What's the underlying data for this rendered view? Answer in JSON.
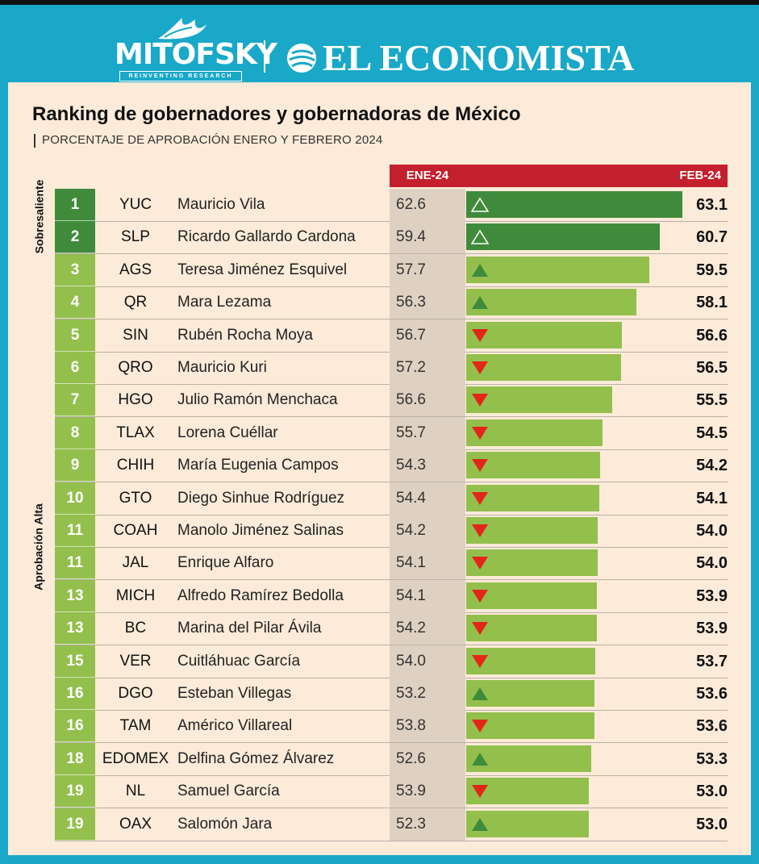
{
  "logos": {
    "mitofsky": "MITOFSKY",
    "mitofsky_tagline": "REINVENTING RESEARCH",
    "el_economista": "EL ECONOMISTA"
  },
  "title": "Ranking de gobernadores y gobernadoras de México",
  "subtitle": "PORCENTAJE DE APROBACIÓN ENERO Y FEBRERO 2024",
  "colors": {
    "sobresaliente": "#3f8b3b",
    "aprobacion_alta": "#93bf4c",
    "header": "#c41f2d",
    "up": "#3f8b3b",
    "down": "#e32618"
  },
  "chart_data": {
    "type": "bar",
    "title": "Ranking de gobernadores y gobernadoras de México",
    "subtitle": "PORCENTAJE DE APROBACIÓN ENERO Y FEBRERO 2024",
    "columns": {
      "ene": "ENE-24",
      "feb": "FEB-24"
    },
    "groups": [
      {
        "label": "Sobresaliente",
        "ranks": [
          "1",
          "2"
        ]
      },
      {
        "label": "Aprobación Alta",
        "ranks": [
          "3",
          "19"
        ]
      }
    ],
    "rows": [
      {
        "rank": "1",
        "state": "YUC",
        "name": "Mauricio Vila",
        "ene": "62.6",
        "feb": "63.1",
        "trend": "up",
        "group": "sobresaliente"
      },
      {
        "rank": "2",
        "state": "SLP",
        "name": "Ricardo Gallardo Cardona",
        "ene": "59.4",
        "feb": "60.7",
        "trend": "up",
        "group": "sobresaliente"
      },
      {
        "rank": "3",
        "state": "AGS",
        "name": "Teresa Jiménez Esquivel",
        "ene": "57.7",
        "feb": "59.5",
        "trend": "up",
        "group": "alta"
      },
      {
        "rank": "4",
        "state": "QR",
        "name": "Mara Lezama",
        "ene": "56.3",
        "feb": "58.1",
        "trend": "up",
        "group": "alta"
      },
      {
        "rank": "5",
        "state": "SIN",
        "name": "Rubén Rocha Moya",
        "ene": "56.7",
        "feb": "56.6",
        "trend": "down",
        "group": "alta"
      },
      {
        "rank": "6",
        "state": "QRO",
        "name": "Mauricio Kuri",
        "ene": "57.2",
        "feb": "56.5",
        "trend": "down",
        "group": "alta"
      },
      {
        "rank": "7",
        "state": "HGO",
        "name": "Julio Ramón Menchaca",
        "ene": "56.6",
        "feb": "55.5",
        "trend": "down",
        "group": "alta"
      },
      {
        "rank": "8",
        "state": "TLAX",
        "name": "Lorena Cuéllar",
        "ene": "55.7",
        "feb": "54.5",
        "trend": "down",
        "group": "alta"
      },
      {
        "rank": "9",
        "state": "CHIH",
        "name": "María Eugenia Campos",
        "ene": "54.3",
        "feb": "54.2",
        "trend": "down",
        "group": "alta"
      },
      {
        "rank": "10",
        "state": "GTO",
        "name": "Diego Sinhue Rodríguez",
        "ene": "54.4",
        "feb": "54.1",
        "trend": "down",
        "group": "alta"
      },
      {
        "rank": "11",
        "state": "COAH",
        "name": "Manolo Jiménez Salinas",
        "ene": "54.2",
        "feb": "54.0",
        "trend": "down",
        "group": "alta"
      },
      {
        "rank": "11",
        "state": "JAL",
        "name": "Enrique Alfaro",
        "ene": "54.1",
        "feb": "54.0",
        "trend": "down",
        "group": "alta"
      },
      {
        "rank": "13",
        "state": "MICH",
        "name": "Alfredo Ramírez Bedolla",
        "ene": "54.1",
        "feb": "53.9",
        "trend": "down",
        "group": "alta"
      },
      {
        "rank": "13",
        "state": "BC",
        "name": "Marina del Pilar Ávila",
        "ene": "54.2",
        "feb": "53.9",
        "trend": "down",
        "group": "alta"
      },
      {
        "rank": "15",
        "state": "VER",
        "name": "Cuitláhuac García",
        "ene": "54.0",
        "feb": "53.7",
        "trend": "down",
        "group": "alta"
      },
      {
        "rank": "16",
        "state": "DGO",
        "name": "Esteban Villegas",
        "ene": "53.2",
        "feb": "53.6",
        "trend": "up",
        "group": "alta"
      },
      {
        "rank": "16",
        "state": "TAM",
        "name": "Américo Villareal",
        "ene": "53.8",
        "feb": "53.6",
        "trend": "down",
        "group": "alta"
      },
      {
        "rank": "18",
        "state": "EDOMEX",
        "name": "Delfina Gómez Álvarez",
        "ene": "52.6",
        "feb": "53.3",
        "trend": "up",
        "group": "alta"
      },
      {
        "rank": "19",
        "state": "NL",
        "name": "Samuel García",
        "ene": "53.9",
        "feb": "53.0",
        "trend": "down",
        "group": "alta"
      },
      {
        "rank": "19",
        "state": "OAX",
        "name": "Salomón Jara",
        "ene": "52.3",
        "feb": "53.0",
        "trend": "up",
        "group": "alta"
      }
    ]
  }
}
